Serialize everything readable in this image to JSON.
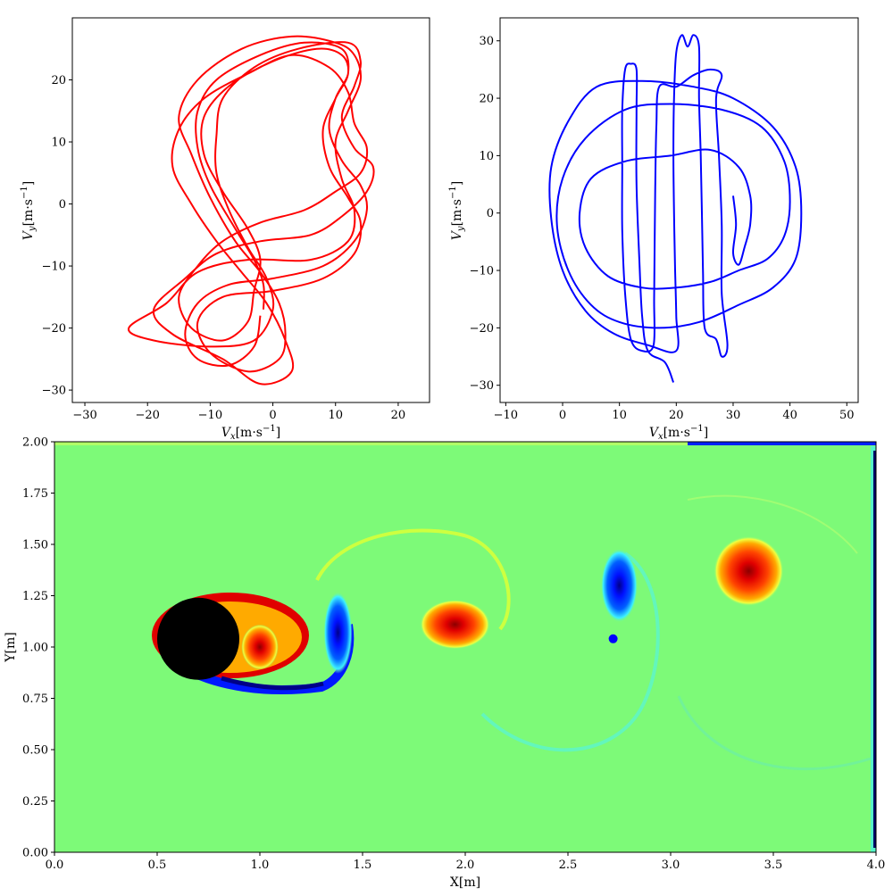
{
  "chart_data": [
    {
      "type": "line",
      "panel": "top-left",
      "title": "",
      "xlabel": {
        "main": "V",
        "sub": "x",
        "unit": "[m·s",
        "sup": "−1",
        "close": "]"
      },
      "ylabel": {
        "main": "V",
        "sub": "y",
        "unit": "[m·s",
        "sup": "−1",
        "close": "]"
      },
      "xlim": [
        -32,
        25
      ],
      "ylim": [
        -32,
        30
      ],
      "xticks": [
        -30,
        -20,
        -10,
        0,
        10,
        20
      ],
      "yticks": [
        -30,
        -20,
        -10,
        0,
        10,
        20
      ],
      "xtick_labels": [
        "−30",
        "−20",
        "−10",
        "0",
        "10",
        "20"
      ],
      "ytick_labels": [
        "−30",
        "−20",
        "−10",
        "0",
        "10",
        "20"
      ],
      "series": [
        {
          "color": "#ff0000",
          "points": [
            [
              -1.5,
              -17
            ],
            [
              -1.5,
              -13
            ],
            [
              -3,
              -9
            ],
            [
              -6,
              -4
            ],
            [
              -10,
              3
            ],
            [
              -12,
              9
            ],
            [
              -12,
              15
            ],
            [
              -9,
              20
            ],
            [
              -2,
              24
            ],
            [
              5,
              26
            ],
            [
              11,
              25
            ],
            [
              12,
              21
            ],
            [
              10,
              17
            ],
            [
              8,
              12
            ],
            [
              9,
              6
            ],
            [
              12,
              1
            ],
            [
              14,
              -3
            ],
            [
              13,
              -8
            ],
            [
              8,
              -12
            ],
            [
              0,
              -14
            ],
            [
              -8,
              -15
            ],
            [
              -12,
              -19
            ],
            [
              -10,
              -24
            ],
            [
              -4,
              -27
            ],
            [
              1,
              -25
            ],
            [
              2,
              -21
            ],
            [
              1,
              -16
            ],
            [
              -2,
              -11
            ],
            [
              -6,
              -6
            ],
            [
              -10,
              1
            ],
            [
              -13,
              8
            ],
            [
              -15,
              14
            ],
            [
              -12,
              20
            ],
            [
              -5,
              25
            ],
            [
              3,
              27
            ],
            [
              10,
              26
            ],
            [
              13,
              24
            ],
            [
              14,
              20
            ],
            [
              12,
              15
            ],
            [
              10,
              10
            ],
            [
              11,
              4
            ],
            [
              13,
              -1
            ],
            [
              12,
              -6
            ],
            [
              6,
              -9
            ],
            [
              -4,
              -9
            ],
            [
              -12,
              -11
            ],
            [
              -17,
              -16
            ],
            [
              -23,
              -20
            ],
            [
              -19,
              -22
            ],
            [
              -10,
              -23
            ],
            [
              -3,
              -22
            ],
            [
              0,
              -17
            ],
            [
              -1,
              -12
            ],
            [
              -4,
              -7
            ],
            [
              -7,
              -1
            ],
            [
              -9,
              5
            ],
            [
              -9,
              11
            ],
            [
              -8,
              17
            ],
            [
              -3,
              22
            ],
            [
              4,
              25
            ],
            [
              12,
              26
            ],
            [
              14,
              23
            ],
            [
              13,
              19
            ],
            [
              11,
              14
            ],
            [
              13,
              9
            ],
            [
              16,
              6
            ],
            [
              15,
              2
            ],
            [
              11,
              -2
            ],
            [
              6,
              -5
            ],
            [
              -2,
              -6
            ],
            [
              -9,
              -8
            ],
            [
              -14,
              -12
            ],
            [
              -19,
              -17
            ],
            [
              -16,
              -21
            ],
            [
              -8,
              -25
            ],
            [
              -2,
              -29
            ],
            [
              3,
              -27
            ],
            [
              2,
              -22
            ],
            [
              -1,
              -16
            ],
            [
              -5,
              -11
            ],
            [
              -9,
              -6
            ],
            [
              -13,
              0
            ],
            [
              -16,
              6
            ],
            [
              -15,
              12
            ],
            [
              -11,
              17
            ],
            [
              -4,
              21
            ],
            [
              3,
              24
            ],
            [
              9,
              22
            ],
            [
              12,
              18
            ],
            [
              13,
              13
            ],
            [
              15,
              9
            ],
            [
              14,
              5
            ],
            [
              10,
              2
            ],
            [
              5,
              -1
            ],
            [
              -2,
              -3
            ],
            [
              -8,
              -6
            ],
            [
              -12,
              -10
            ],
            [
              -15,
              -15
            ],
            [
              -13,
              -20
            ],
            [
              -8,
              -22
            ],
            [
              -4,
              -19
            ],
            [
              -3,
              -14
            ],
            [
              -2,
              -9
            ],
            [
              -4,
              -4
            ],
            [
              -8,
              2
            ],
            [
              -11,
              8
            ],
            [
              -11,
              14
            ],
            [
              -7,
              19
            ],
            [
              0,
              23
            ],
            [
              7,
              25
            ],
            [
              11,
              24
            ],
            [
              12,
              21
            ],
            [
              10,
              17
            ],
            [
              9,
              12
            ],
            [
              11,
              7
            ],
            [
              14,
              3
            ],
            [
              15,
              -1
            ],
            [
              13,
              -6
            ],
            [
              8,
              -10
            ],
            [
              0,
              -12
            ],
            [
              -7,
              -13
            ],
            [
              -12,
              -16
            ],
            [
              -14,
              -21
            ],
            [
              -12,
              -25
            ],
            [
              -7,
              -26
            ],
            [
              -3,
              -23
            ],
            [
              -2,
              -18
            ]
          ]
        }
      ]
    },
    {
      "type": "line",
      "panel": "top-right",
      "title": "",
      "xlabel": {
        "main": "V",
        "sub": "x",
        "unit": "[m·s",
        "sup": "−1",
        "close": "]"
      },
      "ylabel": {
        "main": "V",
        "sub": "y",
        "unit": "[m·s",
        "sup": "−1",
        "close": "]"
      },
      "xlim": [
        -11,
        52
      ],
      "ylim": [
        -33,
        34
      ],
      "xticks": [
        -10,
        0,
        10,
        20,
        30,
        40,
        50
      ],
      "yticks": [
        -30,
        -20,
        -10,
        0,
        10,
        20,
        30
      ],
      "xtick_labels": [
        "−10",
        "0",
        "10",
        "20",
        "30",
        "40",
        "50"
      ],
      "ytick_labels": [
        "−30",
        "−20",
        "−10",
        "0",
        "10",
        "20",
        "30"
      ],
      "series": [
        {
          "color": "#0000ff",
          "points": [
            [
              30,
              3
            ],
            [
              30.5,
              -2
            ],
            [
              30,
              -7
            ],
            [
              31,
              -9
            ],
            [
              32,
              -6
            ],
            [
              33,
              -2
            ],
            [
              33,
              3
            ],
            [
              31,
              8
            ],
            [
              26,
              11
            ],
            [
              19,
              10
            ],
            [
              11,
              9
            ],
            [
              5,
              6
            ],
            [
              3,
              0
            ],
            [
              4,
              -6
            ],
            [
              8,
              -11
            ],
            [
              14,
              -13
            ],
            [
              20,
              -13
            ],
            [
              26,
              -12
            ],
            [
              31,
              -10
            ],
            [
              36,
              -8
            ],
            [
              39,
              -4
            ],
            [
              40,
              2
            ],
            [
              39,
              9
            ],
            [
              35,
              15
            ],
            [
              28,
              18
            ],
            [
              19,
              19
            ],
            [
              11,
              18
            ],
            [
              4,
              13
            ],
            [
              0,
              6
            ],
            [
              -1,
              -2
            ],
            [
              1,
              -10
            ],
            [
              5,
              -16
            ],
            [
              10,
              -19
            ],
            [
              17,
              -20
            ],
            [
              24,
              -19
            ],
            [
              31,
              -16
            ],
            [
              37,
              -13
            ],
            [
              41,
              -8
            ],
            [
              42,
              0
            ],
            [
              41,
              8
            ],
            [
              37,
              15
            ],
            [
              30,
              20
            ],
            [
              23,
              22
            ],
            [
              14,
              23
            ],
            [
              6,
              22
            ],
            [
              1,
              16
            ],
            [
              -2,
              8
            ],
            [
              -2,
              -1
            ],
            [
              0,
              -10
            ],
            [
              4,
              -17
            ],
            [
              9,
              -21
            ],
            [
              15,
              -23
            ],
            [
              20,
              -24
            ],
            [
              20,
              -18
            ],
            [
              19.8,
              -10
            ],
            [
              19.6,
              0
            ],
            [
              19.5,
              10
            ],
            [
              19.6,
              20
            ],
            [
              20,
              28
            ],
            [
              21,
              31
            ],
            [
              22,
              29
            ],
            [
              23,
              31
            ],
            [
              24,
              29
            ],
            [
              24,
              20
            ],
            [
              24.3,
              10
            ],
            [
              24.5,
              0
            ],
            [
              24.7,
              -10
            ],
            [
              25,
              -20
            ],
            [
              27,
              -22
            ],
            [
              28,
              -25
            ],
            [
              29,
              -23
            ],
            [
              28,
              -14
            ],
            [
              28,
              -2
            ],
            [
              27.5,
              10
            ],
            [
              27,
              20
            ],
            [
              28,
              24
            ],
            [
              26,
              25
            ],
            [
              23,
              24
            ],
            [
              20,
              22
            ],
            [
              17,
              22
            ],
            [
              16.5,
              15
            ],
            [
              16.3,
              5
            ],
            [
              16.2,
              -5
            ],
            [
              16.1,
              -15
            ],
            [
              16,
              -23
            ],
            [
              14,
              -24
            ],
            [
              12,
              -22
            ],
            [
              11,
              -14
            ],
            [
              10.5,
              -3
            ],
            [
              10.5,
              8
            ],
            [
              10.5,
              18
            ],
            [
              11,
              25
            ],
            [
              12,
              26
            ],
            [
              13,
              25
            ],
            [
              13,
              18
            ],
            [
              13,
              5
            ],
            [
              13.5,
              -8
            ],
            [
              14,
              -18
            ],
            [
              15,
              -24
            ],
            [
              18,
              -26
            ],
            [
              19.5,
              -29.5
            ]
          ]
        }
      ]
    },
    {
      "type": "heatmap",
      "panel": "bottom",
      "title": "",
      "xlabel": "X[m]",
      "ylabel": "Y[m]",
      "xlim": [
        0,
        4
      ],
      "ylim": [
        0,
        2
      ],
      "xticks": [
        0,
        0.5,
        1,
        1.5,
        2,
        2.5,
        3,
        3.5,
        4
      ],
      "yticks": [
        0,
        0.25,
        0.5,
        0.75,
        1,
        1.25,
        1.5,
        1.75,
        2
      ],
      "xtick_labels": [
        "0.0",
        "0.5",
        "1.0",
        "1.5",
        "2.0",
        "2.5",
        "3.0",
        "3.5",
        "4.0"
      ],
      "ytick_labels": [
        "0.00",
        "0.25",
        "0.50",
        "0.75",
        "1.00",
        "1.25",
        "1.50",
        "1.75",
        "2.00"
      ],
      "colormap": "jet",
      "background_color": "#7dfa78",
      "cylinder": {
        "center": [
          0.7,
          1.04
        ],
        "radius": 0.2,
        "color": "#000000"
      },
      "probe": {
        "position": [
          2.72,
          1.04
        ],
        "color": "#0000ff"
      },
      "vortices": [
        {
          "sign": "positive",
          "center": [
            1.95,
            1.11
          ],
          "radii": [
            0.17,
            0.12
          ]
        },
        {
          "sign": "negative",
          "center": [
            2.75,
            1.3
          ],
          "radii": [
            0.09,
            0.18
          ]
        },
        {
          "sign": "positive",
          "center": [
            3.38,
            1.37
          ],
          "radii": [
            0.17,
            0.17
          ]
        },
        {
          "sign": "negative",
          "center": [
            1.38,
            1.07
          ],
          "radii": [
            0.07,
            0.2
          ]
        },
        {
          "sign": "positive",
          "center": [
            1.0,
            1.0
          ],
          "radii": [
            0.09,
            0.11
          ]
        }
      ],
      "color_scale": {
        "deep_red": "#8b0000",
        "red": "#ff2200",
        "orange": "#ff9900",
        "yellow": "#f0ff40",
        "background": "#7dfa78",
        "cyan": "#3cf0ff",
        "blue": "#0010ff",
        "deep_blue": "#000088"
      }
    }
  ]
}
